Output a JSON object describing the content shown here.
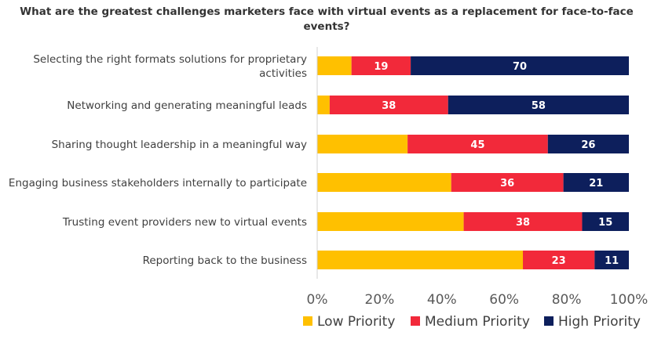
{
  "chart_data": {
    "type": "bar",
    "orientation": "horizontal",
    "stacked": "percent",
    "title_lines": [
      "What are the greatest challenges marketers face with virtual  events as a replacement  for face-to-face",
      "events?"
    ],
    "categories": [
      [
        "Selecting the right formats solutions for proprietary",
        "activities"
      ],
      [
        "Networking and generating meaningful leads"
      ],
      [
        "Sharing thought leadership in a meaningful way"
      ],
      [
        "Engaging business stakeholders internally to participate"
      ],
      [
        "Trusting event providers new to virtual events"
      ],
      [
        "Reporting back to the business"
      ]
    ],
    "series": [
      {
        "name": "Low Priority",
        "color": "#FFC000",
        "values": [
          11,
          4,
          29,
          43,
          47,
          66
        ],
        "labels": [
          "",
          "",
          "",
          "",
          "",
          ""
        ]
      },
      {
        "name": "Medium Priority",
        "color": "#F2293A",
        "values": [
          19,
          38,
          45,
          36,
          38,
          23
        ],
        "labels": [
          "19",
          "38",
          "45",
          "36",
          "38",
          "23"
        ]
      },
      {
        "name": "High Priority",
        "color": "#0D1F5C",
        "values": [
          70,
          58,
          26,
          21,
          15,
          11
        ],
        "labels": [
          "70",
          "58",
          "26",
          "21",
          "15",
          "11"
        ]
      }
    ],
    "xticks": [
      "0%",
      "20%",
      "40%",
      "60%",
      "80%",
      "100%"
    ],
    "xlim": [
      0,
      100
    ],
    "legend": "bottom",
    "grid": false
  }
}
